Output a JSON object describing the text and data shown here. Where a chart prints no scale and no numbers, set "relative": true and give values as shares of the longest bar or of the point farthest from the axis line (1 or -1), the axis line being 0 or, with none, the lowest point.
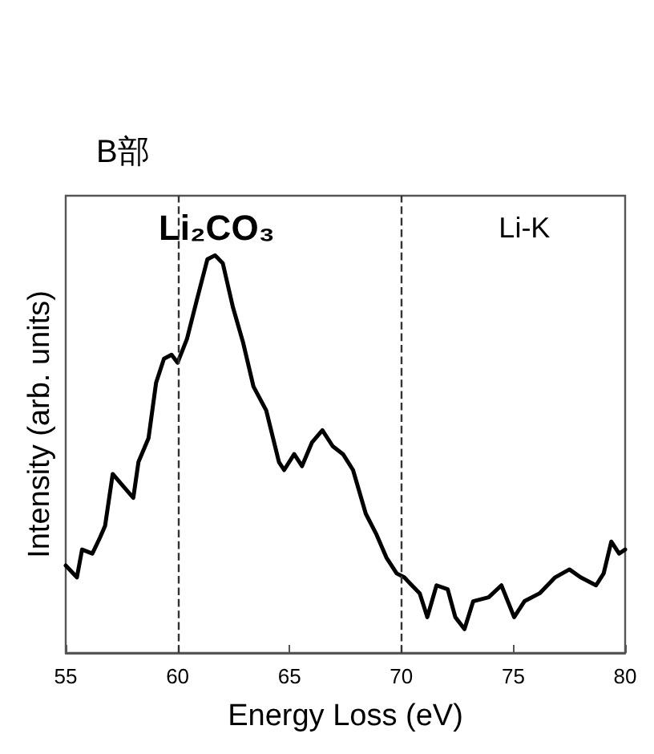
{
  "chart_data": {
    "type": "line",
    "title": "B部",
    "xlabel": "Energy Loss (eV)",
    "ylabel": "Intensity (arb. units)",
    "relative": true,
    "annotations": [
      "Li₂CO₃",
      "Li-K"
    ],
    "x": [
      55.0,
      55.5,
      55.73,
      56.19,
      56.53,
      56.76,
      57.1,
      57.56,
      58.02,
      58.25,
      58.7,
      59.04,
      59.39,
      59.73,
      60.0,
      60.42,
      60.87,
      61.33,
      61.67,
      62.02,
      62.47,
      62.93,
      63.39,
      63.96,
      64.53,
      64.76,
      65.21,
      65.56,
      66.01,
      66.47,
      66.93,
      67.39,
      67.84,
      68.41,
      68.87,
      69.33,
      69.79,
      70.13,
      70.47,
      70.82,
      71.16,
      71.57,
      72.07,
      72.41,
      72.82,
      73.21,
      73.9,
      74.47,
      75.04,
      75.5,
      76.18,
      76.87,
      77.51,
      78.01,
      78.7,
      79.04,
      79.38,
      79.73,
      80.0
    ],
    "series": [
      {
        "color": "#000000",
        "values": [
          0.22,
          0.19,
          0.26,
          0.25,
          0.29,
          0.32,
          0.45,
          0.42,
          0.39,
          0.48,
          0.54,
          0.68,
          0.74,
          0.75,
          0.73,
          0.79,
          0.89,
          0.99,
          1.0,
          0.98,
          0.87,
          0.78,
          0.67,
          0.61,
          0.48,
          0.46,
          0.5,
          0.47,
          0.53,
          0.56,
          0.52,
          0.5,
          0.46,
          0.35,
          0.3,
          0.24,
          0.2,
          0.19,
          0.17,
          0.15,
          0.09,
          0.17,
          0.16,
          0.09,
          0.06,
          0.13,
          0.14,
          0.17,
          0.09,
          0.13,
          0.15,
          0.19,
          0.21,
          0.19,
          0.17,
          0.2,
          0.28,
          0.25,
          0.26
        ]
      }
    ],
    "xlim": [
      55,
      80
    ],
    "xticks": [
      55,
      60,
      65,
      70,
      75,
      80
    ],
    "grid": false,
    "marker": "none",
    "line_style": "solid",
    "ref_lines": [
      {
        "axis": "x",
        "value": 60,
        "line_style": "dashed",
        "color": "#333333"
      },
      {
        "axis": "x",
        "value": 70,
        "line_style": "dashed",
        "color": "#333333"
      }
    ]
  }
}
